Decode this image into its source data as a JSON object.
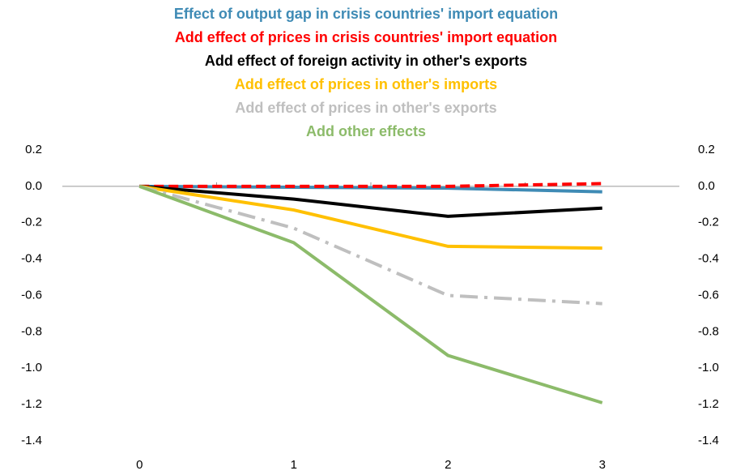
{
  "chart_data": {
    "type": "line",
    "categories": [
      "0",
      "1",
      "2",
      "3"
    ],
    "series": [
      {
        "name": "Effect of  output gap in crisis countries' import equation",
        "color": "#3f8bb5",
        "dash": "solid",
        "values": [
          0,
          -0.005,
          -0.01,
          -0.03
        ]
      },
      {
        "name": "Add effect of prices in crisis countries' import equation",
        "color": "#ff0000",
        "dash": "dash",
        "values": [
          0,
          0.0,
          0.0,
          0.015
        ]
      },
      {
        "name": "Add effect of foreign activity in other's exports",
        "color": "#000000",
        "dash": "solid",
        "values": [
          0,
          -0.07,
          -0.165,
          -0.12
        ]
      },
      {
        "name": "Add effect of prices in other's imports",
        "color": "#ffc000",
        "dash": "solid",
        "values": [
          0,
          -0.13,
          -0.33,
          -0.34
        ]
      },
      {
        "name": "Add effect of prices in other's exports",
        "color": "#bfbfbf",
        "dash": "dashdot",
        "values": [
          0,
          -0.23,
          -0.6,
          -0.645
        ]
      },
      {
        "name": "Add other effects",
        "color": "#8cbb6a",
        "dash": "solid",
        "values": [
          0,
          -0.31,
          -0.93,
          -1.19
        ]
      }
    ],
    "ylim": [
      -1.4,
      0.2
    ],
    "yticks": [
      0.2,
      {
        "value": 0,
        "label": "0.0"
      },
      -0.2,
      -0.4,
      -0.6,
      -0.8,
      {
        "value": -1,
        "label": "-1.0"
      },
      -1.2,
      -1.4
    ],
    "y2lim": [
      -1.4,
      0.2
    ],
    "y2ticks": [
      0.2,
      {
        "value": 0,
        "label": "0.0"
      },
      -0.2,
      -0.4,
      -0.6,
      -0.8,
      {
        "value": -1,
        "label": "-1.0"
      },
      -1.2,
      -1.4
    ]
  }
}
